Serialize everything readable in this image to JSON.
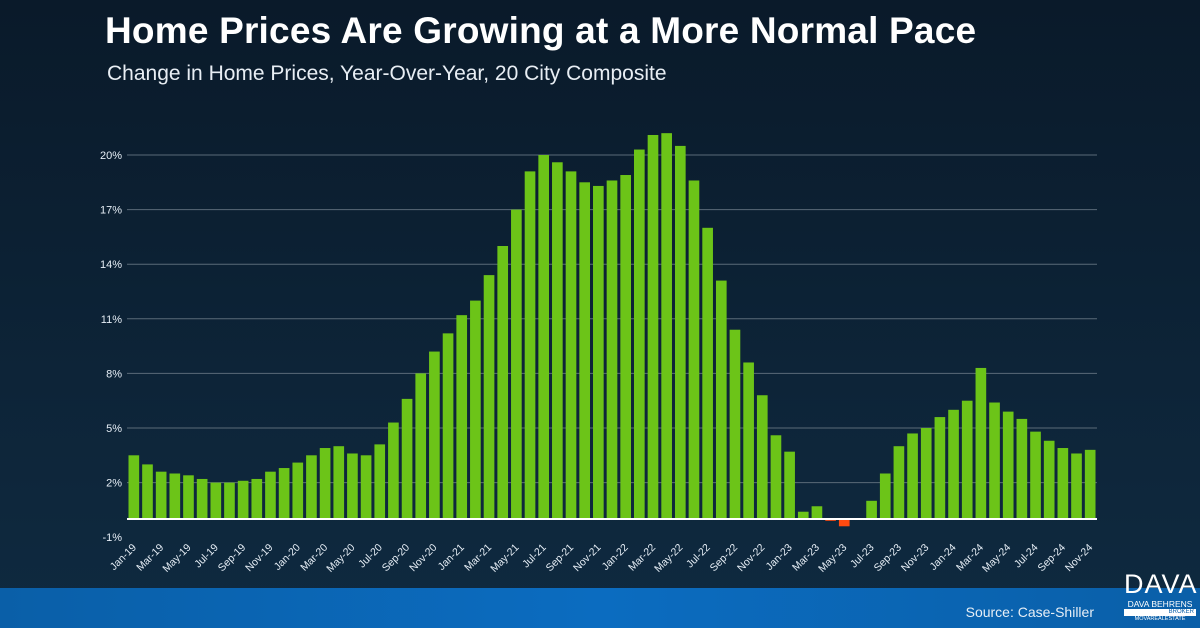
{
  "header": {
    "title": "Home Prices Are Growing at a More Normal Pace",
    "subtitle": "Change in Home Prices, Year-Over-Year, 20 City Composite"
  },
  "footer": {
    "source": "Source: Case-Shiller",
    "logo": {
      "big": "DAVA",
      "name": "DAVA BEHRENS",
      "role": "BROKER",
      "brand": "MOVAREALESTATE"
    }
  },
  "colors": {
    "positive": "#6cc418",
    "negative": "#ff4a10",
    "grid": "#5a6a78",
    "zero": "#ffffff"
  },
  "chart_data": {
    "type": "bar",
    "title": "Home Prices Are Growing at a More Normal Pace",
    "subtitle": "Change in Home Prices, Year-Over-Year, 20 City Composite",
    "xlabel": "",
    "ylabel": "",
    "ylim": [
      -1,
      21.5
    ],
    "yticks": [
      -1,
      2,
      5,
      8,
      11,
      14,
      17,
      20
    ],
    "ytick_labels": [
      "-1%",
      "2%",
      "5%",
      "8%",
      "11%",
      "14%",
      "17%",
      "20%"
    ],
    "grid": true,
    "categories": [
      "Jan-19",
      "Feb-19",
      "Mar-19",
      "Apr-19",
      "May-19",
      "Jun-19",
      "Jul-19",
      "Aug-19",
      "Sep-19",
      "Oct-19",
      "Nov-19",
      "Dec-19",
      "Jan-20",
      "Feb-20",
      "Mar-20",
      "Apr-20",
      "May-20",
      "Jun-20",
      "Jul-20",
      "Aug-20",
      "Sep-20",
      "Oct-20",
      "Nov-20",
      "Dec-20",
      "Jan-21",
      "Feb-21",
      "Mar-21",
      "Apr-21",
      "May-21",
      "Jun-21",
      "Jul-21",
      "Aug-21",
      "Sep-21",
      "Oct-21",
      "Nov-21",
      "Dec-21",
      "Jan-22",
      "Feb-22",
      "Mar-22",
      "Apr-22",
      "May-22",
      "Jun-22",
      "Jul-22",
      "Aug-22",
      "Sep-22",
      "Oct-22",
      "Nov-22",
      "Dec-22",
      "Jan-23",
      "Feb-23",
      "Mar-23",
      "Apr-23",
      "May-23",
      "Jun-23",
      "Jul-23",
      "Aug-23",
      "Sep-23",
      "Oct-23",
      "Nov-23",
      "Dec-23",
      "Jan-24",
      "Feb-24",
      "Mar-24",
      "Apr-24",
      "May-24",
      "Jun-24",
      "Jul-24",
      "Aug-24",
      "Sep-24",
      "Oct-24",
      "Nov-24"
    ],
    "values": [
      3.5,
      3.0,
      2.6,
      2.5,
      2.4,
      2.2,
      2.0,
      2.0,
      2.1,
      2.2,
      2.6,
      2.8,
      3.1,
      3.5,
      3.9,
      4.0,
      3.6,
      3.5,
      4.1,
      5.3,
      6.6,
      8.0,
      9.2,
      10.2,
      11.2,
      12.0,
      13.4,
      15.0,
      17.0,
      19.1,
      20.0,
      19.6,
      19.1,
      18.5,
      18.3,
      18.6,
      18.9,
      20.3,
      21.1,
      21.2,
      20.5,
      18.6,
      16.0,
      13.1,
      10.4,
      8.6,
      6.8,
      4.6,
      3.7,
      0.4,
      0.7,
      -0.1,
      -0.4,
      -0.05,
      1.0,
      2.5,
      4.0,
      4.7,
      5.0,
      5.6,
      6.0,
      6.5,
      8.3,
      6.4,
      5.9,
      5.5,
      4.8,
      4.3,
      3.9,
      3.6,
      3.8
    ]
  }
}
